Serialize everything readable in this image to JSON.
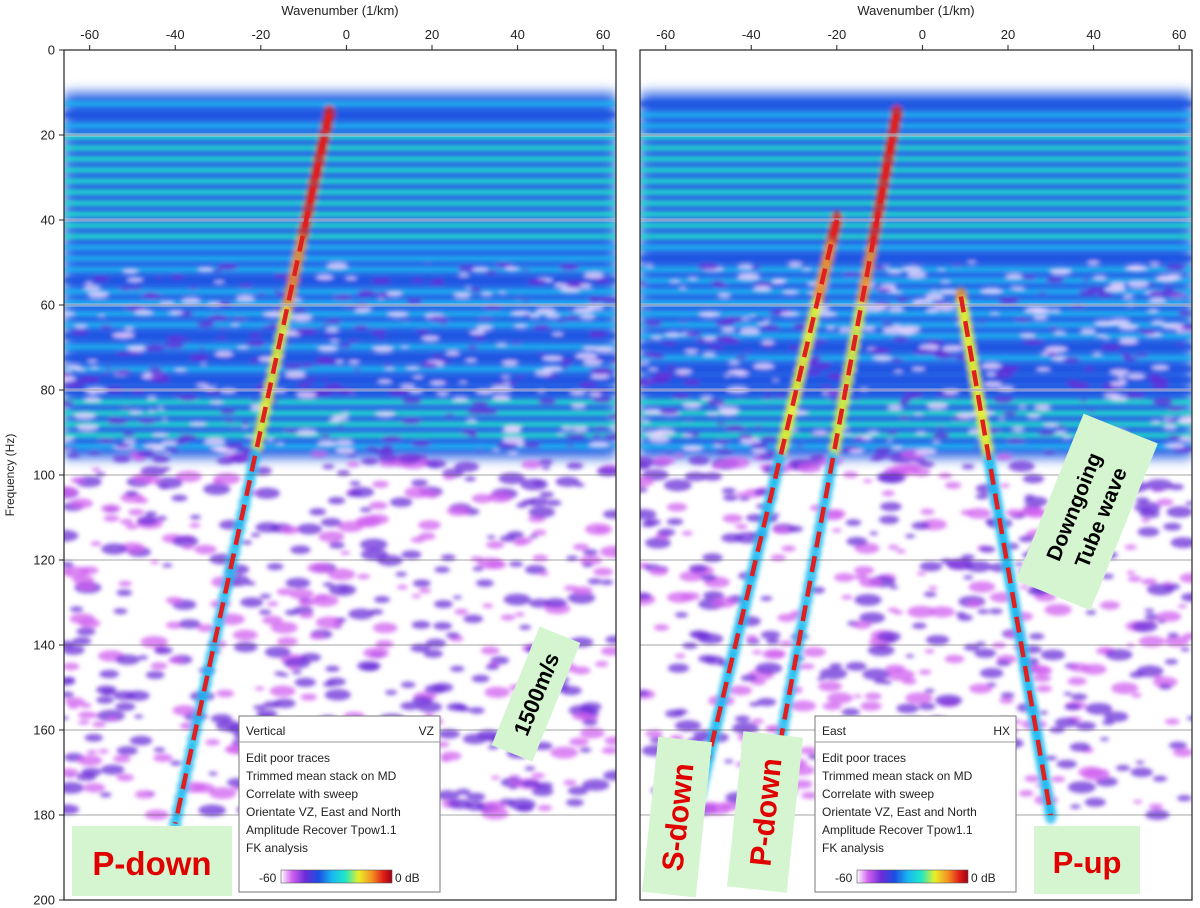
{
  "chart_data": {
    "type": "heatmap",
    "shared": {
      "xlabel": "Wavenumber (1/km)",
      "ylabel": "Frequency (Hz)",
      "xlim": [
        -66,
        63
      ],
      "ylim": [
        200,
        0
      ],
      "x_ticks": [
        -60,
        -40,
        -20,
        0,
        20,
        40,
        60
      ],
      "y_ticks": [
        0,
        20,
        40,
        60,
        80,
        100,
        120,
        140,
        160,
        180,
        200
      ],
      "gridlines_y": [
        20,
        40,
        60,
        80,
        100,
        120,
        140,
        160,
        180
      ],
      "colorbar": {
        "min_label": "-60",
        "max_label": "0 dB",
        "colors": [
          "#ffffff",
          "#d060f0",
          "#6a2bd8",
          "#1a4fe0",
          "#19b9f0",
          "#20e6c8",
          "#e8f028",
          "#f59020",
          "#e0201a",
          "#a00010"
        ]
      }
    },
    "panels": [
      {
        "title": "Vertical",
        "component": "VZ",
        "processing": [
          "Edit poor traces",
          "Trimmed mean stack on MD",
          "Correlate with sweep",
          "Orientate VZ, East and North",
          "Amplitude Recover  Tpow1.1",
          "FK analysis"
        ],
        "annotations": [
          {
            "label": "P-down",
            "line": [
              [
                -4,
                15
              ],
              [
                -40,
                182
              ]
            ]
          },
          {
            "label": "1500m/s",
            "at": [
              48,
              148
            ]
          }
        ]
      },
      {
        "title": "East",
        "component": "HX",
        "processing": [
          "Edit poor traces",
          "Trimmed mean stack on MD",
          "Correlate with sweep",
          "Orientate VZ, East and North",
          "Amplitude Recover  Tpow1.1",
          "FK analysis"
        ],
        "annotations": [
          {
            "label": "S-down",
            "line": [
              [
                -20,
                40
              ],
              [
                -52,
                175
              ]
            ]
          },
          {
            "label": "P-down",
            "line": [
              [
                -6,
                15
              ],
              [
                -36,
                178
              ]
            ]
          },
          {
            "label": "P-up",
            "line": [
              [
                9,
                58
              ],
              [
                30,
                180
              ]
            ]
          },
          {
            "label": "Downgoing Tube wave",
            "at": [
              48,
              128
            ]
          }
        ]
      }
    ]
  },
  "colors": {
    "annotation_line": "#e02020",
    "label_bg": "#d4f5d0",
    "label_text_red": "#e00000",
    "label_text_black": "#000000",
    "gridline": "#555555"
  }
}
